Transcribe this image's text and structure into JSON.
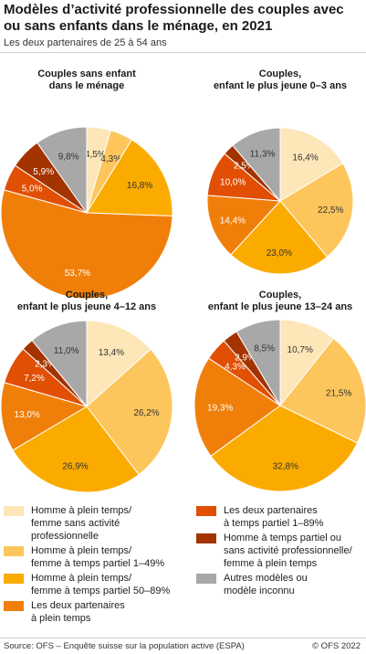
{
  "header": {
    "title": "Modèles d’activité professionnelle des couples avec ou sans enfants dans le ménage, en 2021",
    "subtitle": "Les deux partenaires de 25 à 54 ans"
  },
  "chart_data": [
    {
      "type": "pie",
      "title": "Couples sans enfant\ndans le ménage",
      "categories": [
        "Homme à plein temps/ femme sans activité professionnelle",
        "Homme à plein temps/ femme à temps partiel 1–49%",
        "Homme à plein temps/ femme à temps partiel 50–89%",
        "Les deux partenaires à plein temps",
        "Les deux partenaires à temps partiel 1–89%",
        "Homme à temps partiel ou sans activité professionnelle/ femme à plein temps",
        "Autres modèles ou modèle inconnu"
      ],
      "values": [
        4.5,
        4.3,
        16.8,
        53.7,
        5.0,
        5.9,
        9.8
      ],
      "labels": [
        "4,5%",
        "4,3%",
        "16,8%",
        "53,7%",
        "5,0%",
        "5,9%",
        "9,8%"
      ]
    },
    {
      "type": "pie",
      "title": "Couples,\nenfant le plus jeune 0–3 ans",
      "categories": [
        "Homme à plein temps/ femme sans activité professionnelle",
        "Homme à plein temps/ femme à temps partiel 1–49%",
        "Homme à plein temps/ femme à temps partiel 50–89%",
        "Les deux partenaires à plein temps",
        "Les deux partenaires à temps partiel 1–89%",
        "Homme à temps partiel ou sans activité professionnelle/ femme à plein temps",
        "Autres modèles ou modèle inconnu"
      ],
      "values": [
        16.4,
        22.5,
        23.0,
        14.4,
        10.0,
        2.5,
        11.3
      ],
      "labels": [
        "16,4%",
        "22,5%",
        "23,0%",
        "14,4%",
        "10,0%",
        "2,5%",
        "11,3%"
      ]
    },
    {
      "type": "pie",
      "title": "Couples,\nenfant le plus jeune 4–12 ans",
      "categories": [
        "Homme à plein temps/ femme sans activité professionnelle",
        "Homme à plein temps/ femme à temps partiel 1–49%",
        "Homme à plein temps/ femme à temps partiel 50–89%",
        "Les deux partenaires à plein temps",
        "Les deux partenaires à temps partiel 1–89%",
        "Homme à temps partiel ou sans activité professionnelle/ femme à plein temps",
        "Autres modèles ou modèle inconnu"
      ],
      "values": [
        13.4,
        26.2,
        26.9,
        13.0,
        7.2,
        2.3,
        11.0
      ],
      "labels": [
        "13,4%",
        "26,2%",
        "26,9%",
        "13,0%",
        "7,2%",
        "2,3%",
        "11,0%"
      ]
    },
    {
      "type": "pie",
      "title": "Couples,\nenfant le plus jeune 13–24 ans",
      "categories": [
        "Homme à plein temps/ femme sans activité professionnelle",
        "Homme à plein temps/ femme à temps partiel 1–49%",
        "Homme à plein temps/ femme à temps partiel 50–89%",
        "Les deux partenaires à plein temps",
        "Les deux partenaires à temps partiel 1–89%",
        "Homme à temps partiel ou sans activité professionnelle/ femme à plein temps",
        "Autres modèles ou modèle inconnu"
      ],
      "values": [
        10.7,
        21.5,
        32.8,
        19.3,
        4.3,
        2.9,
        8.5
      ],
      "labels": [
        "10,7%",
        "21,5%",
        "32,8%",
        "19,3%",
        "4,3%",
        "2,9%",
        "8,5%"
      ]
    }
  ],
  "legend": {
    "items": [
      {
        "label": "Homme à plein temps/\nfemme sans activité\nprofessionnelle",
        "color": "#fde6b8"
      },
      {
        "label": "Homme à plein temps/\nfemme à temps partiel 1–49%",
        "color": "#fdc65c"
      },
      {
        "label": "Homme à plein temps/\nfemme à temps partiel 50–89%",
        "color": "#fbab00"
      },
      {
        "label": "Les deux partenaires\nà plein temps",
        "color": "#f07f0a"
      },
      {
        "label": "Les deux partenaires\nà temps partiel 1–89%",
        "color": "#e04f04"
      },
      {
        "label": "Homme à temps partiel ou\nsans activité professionnelle/\nfemme à plein temps",
        "color": "#a33400"
      },
      {
        "label": "Autres modèles ou\nmodèle inconnu",
        "color": "#a8a8a8"
      }
    ]
  },
  "footer": {
    "source": "Source: OFS – Enquête suisse sur la population active (ESPA)",
    "credit": "© OFS 2022"
  }
}
